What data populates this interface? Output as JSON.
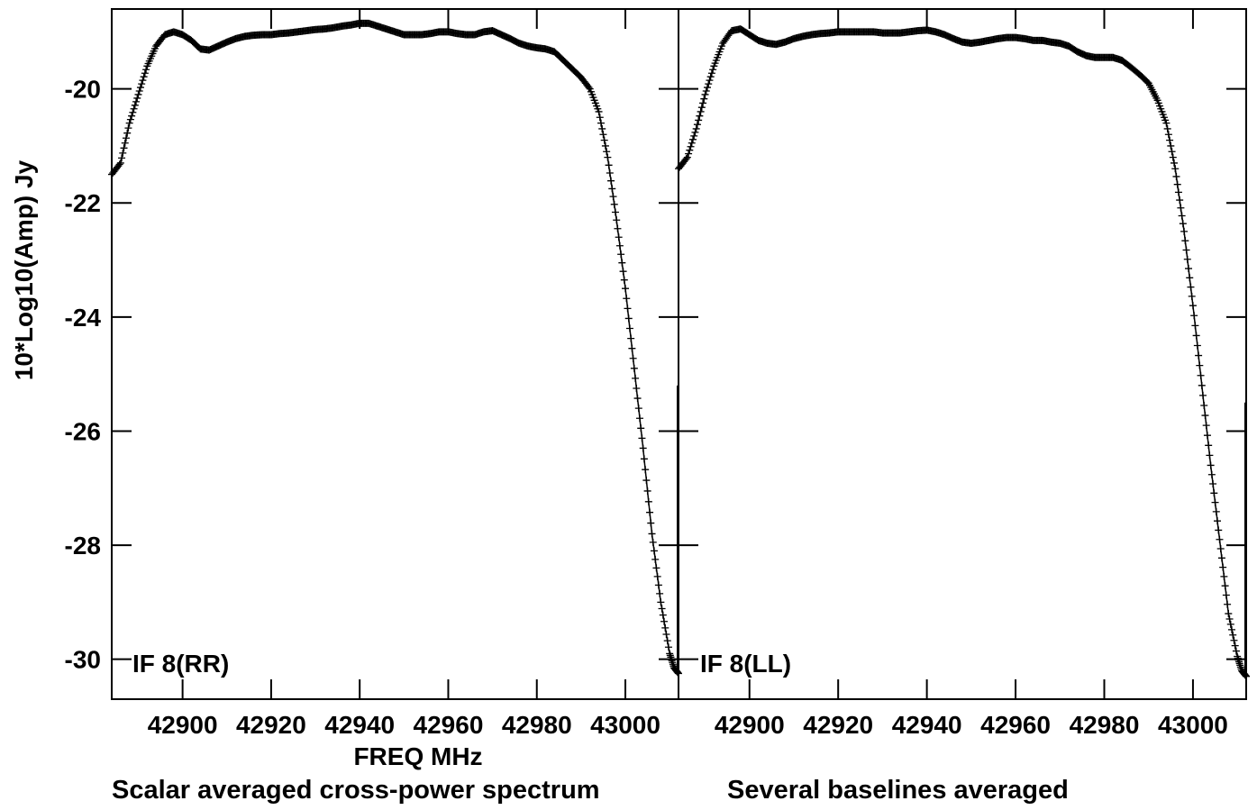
{
  "colors": {
    "ink": "#000000",
    "background": "#ffffff"
  },
  "chart_data": {
    "type": "scatter",
    "marker": "plus",
    "ylabel": "10*Log10(Amp) Jy",
    "xlabel": "FREQ MHz",
    "footer_left": "Scalar averaged cross-power spectrum",
    "footer_right": "Several baselines averaged",
    "yticks": [
      -20,
      -22,
      -24,
      -26,
      -28,
      -30
    ],
    "ytick_labels": [
      "-20",
      "-22",
      "-24",
      "-26",
      "-28",
      "-30"
    ],
    "xticks": [
      42900,
      42920,
      42940,
      42960,
      42980,
      43000
    ],
    "xtick_labels": [
      "42900",
      "42920",
      "42940",
      "42960",
      "42980",
      "43000"
    ],
    "panels": [
      {
        "name": "IF 8(RR)",
        "xlim": [
          42884,
          43012
        ],
        "ylim": [
          -30.7,
          -18.6
        ],
        "points": [
          [
            42884,
            -21.5
          ],
          [
            42886,
            -21.3
          ],
          [
            42888,
            -20.6
          ],
          [
            42890,
            -20.1
          ],
          [
            42892,
            -19.6
          ],
          [
            42894,
            -19.25
          ],
          [
            42896,
            -19.05
          ],
          [
            42898,
            -19.0
          ],
          [
            42900,
            -19.05
          ],
          [
            42902,
            -19.15
          ],
          [
            42904,
            -19.3
          ],
          [
            42906,
            -19.32
          ],
          [
            42908,
            -19.25
          ],
          [
            42910,
            -19.18
          ],
          [
            42912,
            -19.12
          ],
          [
            42914,
            -19.08
          ],
          [
            42916,
            -19.06
          ],
          [
            42918,
            -19.05
          ],
          [
            42920,
            -19.05
          ],
          [
            42922,
            -19.03
          ],
          [
            42924,
            -19.02
          ],
          [
            42926,
            -19.0
          ],
          [
            42928,
            -18.98
          ],
          [
            42930,
            -18.96
          ],
          [
            42932,
            -18.95
          ],
          [
            42934,
            -18.93
          ],
          [
            42936,
            -18.9
          ],
          [
            42938,
            -18.88
          ],
          [
            42940,
            -18.85
          ],
          [
            42942,
            -18.85
          ],
          [
            42944,
            -18.9
          ],
          [
            42946,
            -18.95
          ],
          [
            42948,
            -19.0
          ],
          [
            42950,
            -19.05
          ],
          [
            42952,
            -19.05
          ],
          [
            42954,
            -19.05
          ],
          [
            42956,
            -19.03
          ],
          [
            42958,
            -19.0
          ],
          [
            42960,
            -19.0
          ],
          [
            42962,
            -19.03
          ],
          [
            42964,
            -19.05
          ],
          [
            42966,
            -19.05
          ],
          [
            42968,
            -19.0
          ],
          [
            42970,
            -18.98
          ],
          [
            42972,
            -19.05
          ],
          [
            42974,
            -19.12
          ],
          [
            42976,
            -19.2
          ],
          [
            42978,
            -19.25
          ],
          [
            42980,
            -19.28
          ],
          [
            42982,
            -19.3
          ],
          [
            42984,
            -19.35
          ],
          [
            42986,
            -19.5
          ],
          [
            42988,
            -19.65
          ],
          [
            42990,
            -19.8
          ],
          [
            42992,
            -20.0
          ],
          [
            42994,
            -20.4
          ],
          [
            42996,
            -21.2
          ],
          [
            42998,
            -22.3
          ],
          [
            43000,
            -23.5
          ],
          [
            43002,
            -24.9
          ],
          [
            43004,
            -26.3
          ],
          [
            43006,
            -27.8
          ],
          [
            43008,
            -29.0
          ],
          [
            43010,
            -29.9
          ],
          [
            43011,
            -30.15
          ],
          [
            43012,
            -30.25
          ]
        ]
      },
      {
        "name": "IF 8(LL)",
        "xlim": [
          42884,
          43012
        ],
        "ylim": [
          -30.7,
          -18.6
        ],
        "points": [
          [
            42884,
            -21.4
          ],
          [
            42886,
            -21.2
          ],
          [
            42888,
            -20.7
          ],
          [
            42890,
            -20.1
          ],
          [
            42892,
            -19.6
          ],
          [
            42894,
            -19.2
          ],
          [
            42896,
            -18.98
          ],
          [
            42898,
            -18.95
          ],
          [
            42900,
            -19.05
          ],
          [
            42902,
            -19.15
          ],
          [
            42904,
            -19.2
          ],
          [
            42906,
            -19.22
          ],
          [
            42908,
            -19.18
          ],
          [
            42910,
            -19.12
          ],
          [
            42912,
            -19.08
          ],
          [
            42914,
            -19.05
          ],
          [
            42916,
            -19.03
          ],
          [
            42918,
            -19.02
          ],
          [
            42920,
            -19.0
          ],
          [
            42922,
            -19.0
          ],
          [
            42924,
            -19.0
          ],
          [
            42926,
            -19.0
          ],
          [
            42928,
            -19.0
          ],
          [
            42930,
            -19.02
          ],
          [
            42932,
            -19.02
          ],
          [
            42934,
            -19.02
          ],
          [
            42936,
            -19.0
          ],
          [
            42938,
            -18.98
          ],
          [
            42940,
            -18.97
          ],
          [
            42942,
            -19.0
          ],
          [
            42944,
            -19.05
          ],
          [
            42946,
            -19.12
          ],
          [
            42948,
            -19.18
          ],
          [
            42950,
            -19.2
          ],
          [
            42952,
            -19.18
          ],
          [
            42954,
            -19.15
          ],
          [
            42956,
            -19.12
          ],
          [
            42958,
            -19.1
          ],
          [
            42960,
            -19.1
          ],
          [
            42962,
            -19.12
          ],
          [
            42964,
            -19.15
          ],
          [
            42966,
            -19.15
          ],
          [
            42968,
            -19.18
          ],
          [
            42970,
            -19.2
          ],
          [
            42972,
            -19.25
          ],
          [
            42974,
            -19.35
          ],
          [
            42976,
            -19.42
          ],
          [
            42978,
            -19.45
          ],
          [
            42980,
            -19.45
          ],
          [
            42982,
            -19.45
          ],
          [
            42984,
            -19.5
          ],
          [
            42986,
            -19.62
          ],
          [
            42988,
            -19.75
          ],
          [
            42990,
            -19.9
          ],
          [
            42992,
            -20.2
          ],
          [
            42994,
            -20.6
          ],
          [
            42996,
            -21.4
          ],
          [
            42998,
            -22.5
          ],
          [
            43000,
            -23.8
          ],
          [
            43002,
            -25.2
          ],
          [
            43004,
            -26.6
          ],
          [
            43006,
            -27.9
          ],
          [
            43008,
            -29.2
          ],
          [
            43010,
            -29.95
          ],
          [
            43011,
            -30.2
          ],
          [
            43012,
            -30.3
          ]
        ]
      }
    ]
  }
}
